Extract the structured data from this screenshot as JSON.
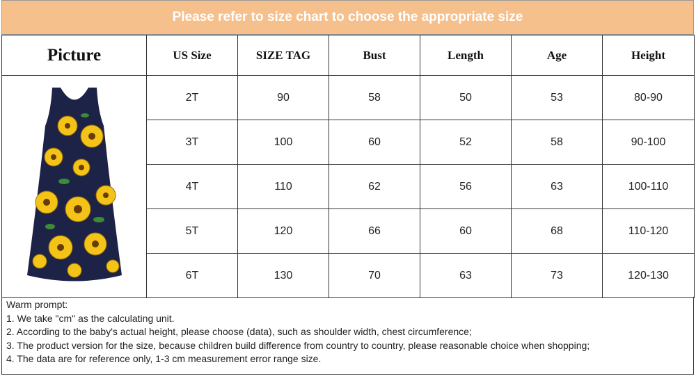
{
  "header": {
    "title": "Please refer to size chart to choose the appropriate size"
  },
  "table": {
    "columns": [
      "Picture",
      "US Size",
      "SIZE TAG",
      "Bust",
      "Length",
      "Age",
      "Height"
    ],
    "rows": [
      [
        "2T",
        90,
        58,
        50,
        53,
        "80-90"
      ],
      [
        "3T",
        100,
        60,
        52,
        58,
        "90-100"
      ],
      [
        "4T",
        110,
        62,
        56,
        63,
        "100-110"
      ],
      [
        "5T",
        120,
        66,
        60,
        68,
        "110-120"
      ],
      [
        "6T",
        130,
        70,
        63,
        73,
        "120-130"
      ]
    ]
  },
  "notes": {
    "title": "Warm prompt:",
    "items": [
      "1. We take \"cm\" as the calculating unit.",
      "2. According to the baby's actual height, please choose (data), such as shoulder width, chest circumference;",
      "3. The product version for the size, because children build difference from country to country, please reasonable choice when shopping;",
      "4. The data are for reference only, 1-3 cm measurement error range size."
    ]
  }
}
